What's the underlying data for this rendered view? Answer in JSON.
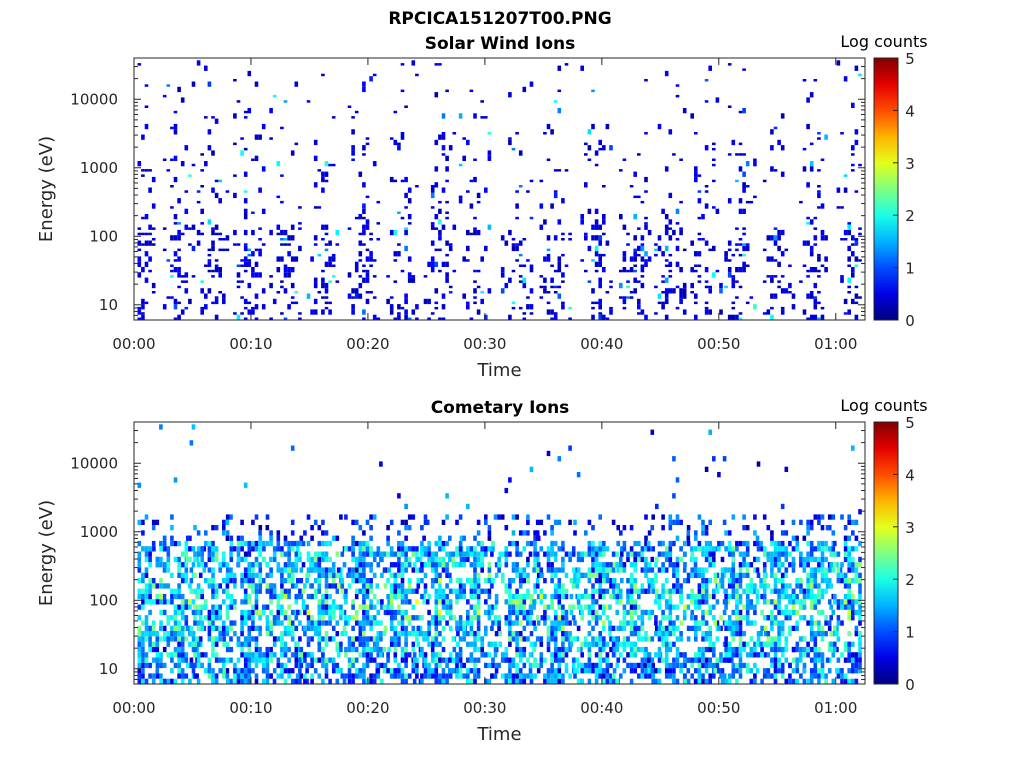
{
  "figure": {
    "title": "RPCICA151207T00.PNG"
  },
  "chart_data": [
    {
      "type": "heatmap",
      "title": "Solar Wind Ions",
      "xlabel": "Time",
      "ylabel": "Energy (eV)",
      "x_ticks": [
        "00:00",
        "00:10",
        "00:20",
        "00:30",
        "00:40",
        "00:50",
        "01:00"
      ],
      "x_tick_minutes": [
        0,
        10,
        20,
        30,
        40,
        50,
        60
      ],
      "xlim_minutes": [
        0,
        62.5
      ],
      "y_ticks": [
        "10",
        "100",
        "1000",
        "10000"
      ],
      "y_tick_values": [
        10,
        100,
        1000,
        10000
      ],
      "y_scale": "log",
      "ylim": [
        6,
        40000
      ],
      "colorbar": {
        "label": "Log counts",
        "min": 0,
        "max": 5,
        "ticks": [
          "0",
          "1",
          "2",
          "3",
          "4",
          "5"
        ],
        "colormap": "jet"
      },
      "sweep_minutes": [
        0.3,
        3.7,
        6.6,
        9.7,
        12.8,
        16,
        19.5,
        22.8,
        26,
        29,
        32.6,
        35.9,
        39.4,
        42.7,
        45.7,
        48.8,
        51.7,
        55,
        58.1,
        61.3
      ],
      "dominant_level": 0.25,
      "max_level": 1.9
    },
    {
      "type": "heatmap",
      "title": "Cometary Ions",
      "xlabel": "Time",
      "ylabel": "Energy (eV)",
      "x_ticks": [
        "00:00",
        "00:10",
        "00:20",
        "00:30",
        "00:40",
        "00:50",
        "01:00"
      ],
      "x_tick_minutes": [
        0,
        10,
        20,
        30,
        40,
        50,
        60
      ],
      "xlim_minutes": [
        0,
        62.5
      ],
      "y_ticks": [
        "10",
        "100",
        "1000",
        "10000"
      ],
      "y_tick_values": [
        10,
        100,
        1000,
        10000
      ],
      "y_scale": "log",
      "ylim": [
        6,
        40000
      ],
      "colorbar": {
        "label": "Log counts",
        "min": 0,
        "max": 5,
        "ticks": [
          "0",
          "1",
          "2",
          "3",
          "4",
          "5"
        ],
        "colormap": "jet"
      },
      "sweep_minutes": [
        0.3,
        3.7,
        6.6,
        9.7,
        12.8,
        16,
        19.5,
        22.8,
        26,
        29,
        32.6,
        35.9,
        39.4,
        42.7,
        45.7,
        48.8,
        51.7,
        55,
        58.1,
        61.3
      ],
      "dominant_level": 1.4,
      "max_level": 2.8
    }
  ]
}
